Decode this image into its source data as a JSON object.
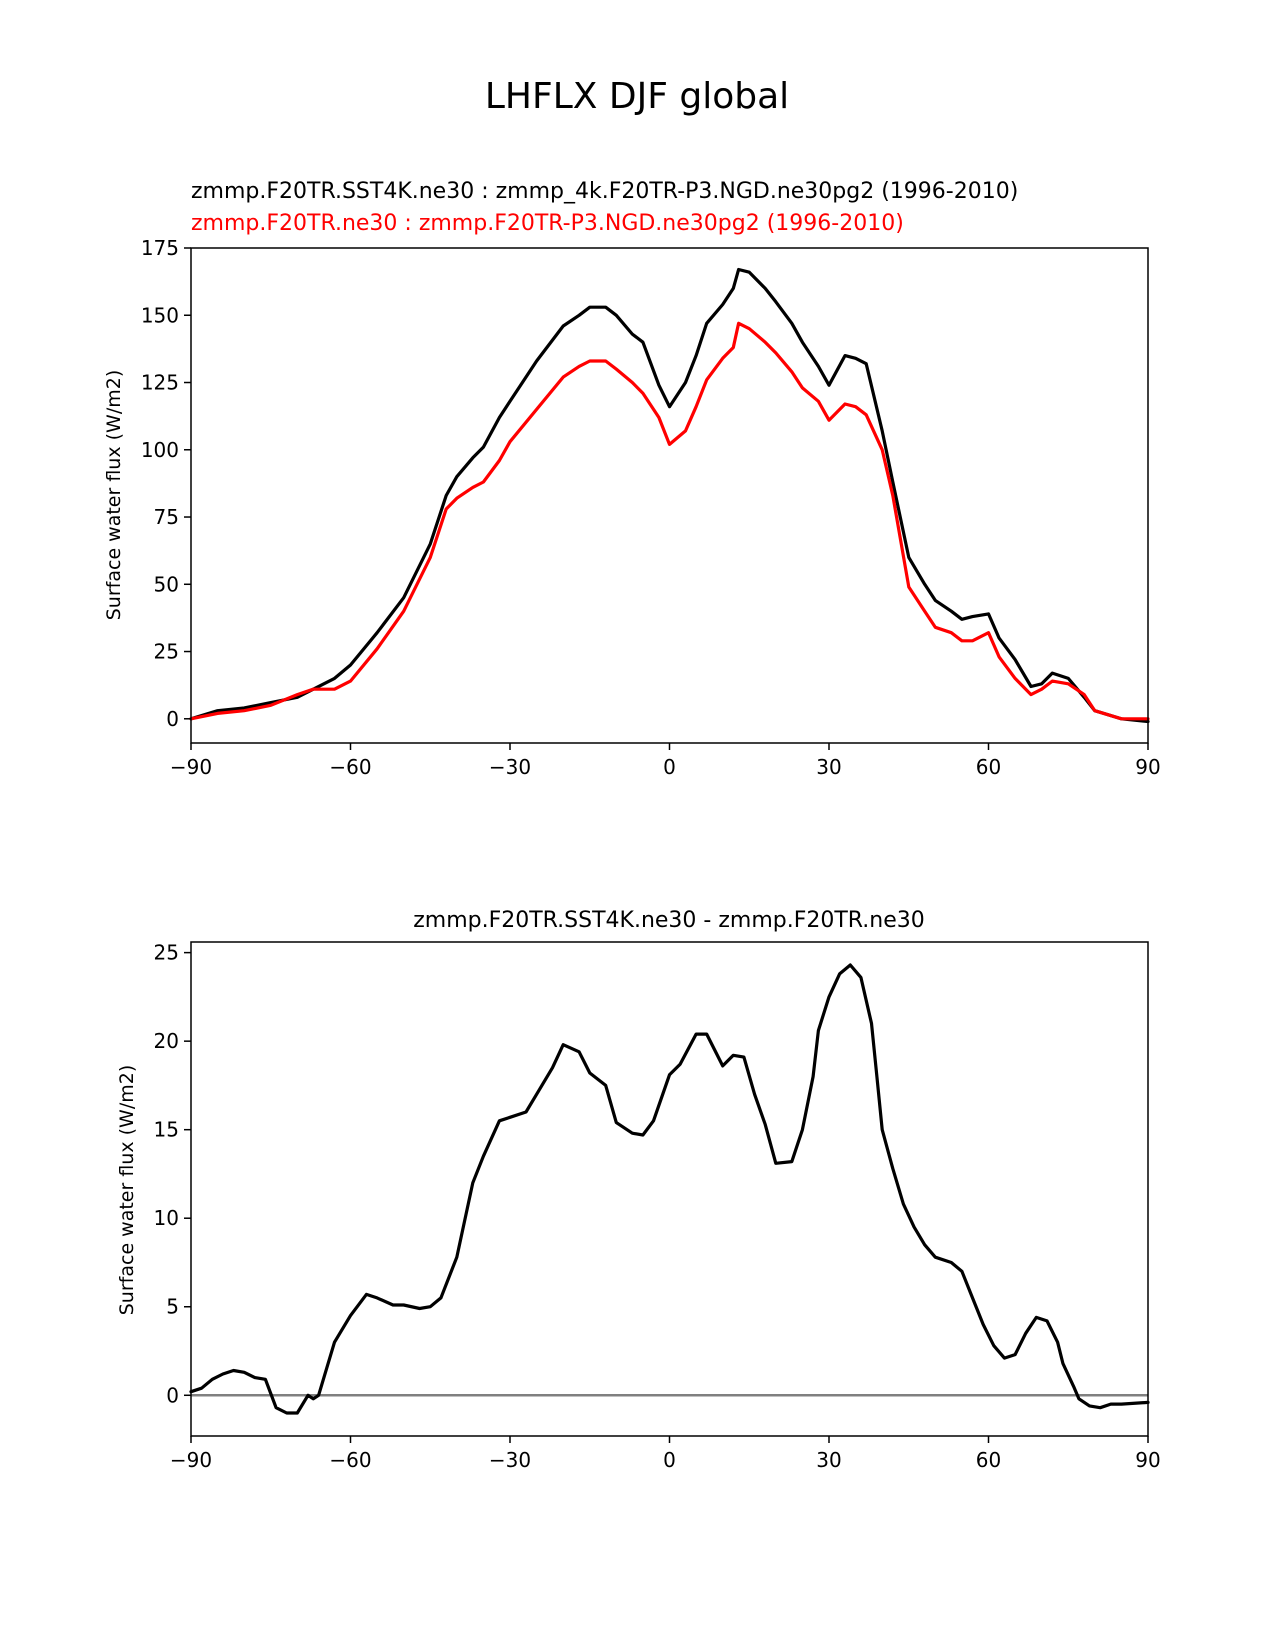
{
  "figure_title": "LHFLX DJF global",
  "chart_data": [
    {
      "type": "line",
      "title_lines": [
        {
          "text": "zmmp.F20TR.SST4K.ne30 : zmmp_4k.F20TR-P3.NGD.ne30pg2 (1996-2010)",
          "color": "#000000"
        },
        {
          "text": "zmmp.F20TR.ne30 : zmmp.F20TR-P3.NGD.ne30pg2 (1996-2010)",
          "color": "#ff0000"
        }
      ],
      "xlabel": "",
      "ylabel": "Surface water flux (W/m2)",
      "xlim": [
        -90,
        90
      ],
      "ylim": [
        -9,
        175
      ],
      "xticks": [
        -90,
        -60,
        -30,
        0,
        30,
        60,
        90
      ],
      "xtick_labels": [
        "−90",
        "−60",
        "−30",
        "0",
        "30",
        "60",
        "90"
      ],
      "yticks": [
        0,
        25,
        50,
        75,
        100,
        125,
        150,
        175
      ],
      "ytick_labels": [
        "0",
        "25",
        "50",
        "75",
        "100",
        "125",
        "150",
        "175"
      ],
      "x": [
        -90,
        -85,
        -80,
        -75,
        -70,
        -67,
        -63,
        -60,
        -55,
        -50,
        -45,
        -42,
        -40,
        -37,
        -35,
        -32,
        -30,
        -25,
        -20,
        -17,
        -15,
        -12,
        -10,
        -7,
        -5,
        -2,
        0,
        3,
        5,
        7,
        10,
        12,
        13,
        15,
        18,
        20,
        23,
        25,
        28,
        30,
        33,
        35,
        37,
        40,
        42,
        45,
        48,
        50,
        53,
        55,
        57,
        60,
        62,
        65,
        68,
        70,
        72,
        75,
        78,
        80,
        85,
        90
      ],
      "series": [
        {
          "name": "zmmp.F20TR.SST4K.ne30 : zmmp_4k.F20TR-P3.NGD.ne30pg2 (1996-2010)",
          "color": "#000000",
          "values": [
            0,
            3,
            4,
            6,
            8,
            11,
            15,
            20,
            32,
            45,
            65,
            83,
            90,
            97,
            101,
            112,
            118,
            133,
            146,
            150,
            153,
            153,
            150,
            143,
            140,
            124,
            116,
            125,
            135,
            147,
            154,
            160,
            167,
            166,
            160,
            155,
            147,
            140,
            131,
            124,
            135,
            134,
            132,
            107,
            88,
            60,
            50,
            44,
            40,
            37,
            38,
            39,
            30,
            22,
            12,
            13,
            17,
            15,
            8,
            3,
            0,
            -1
          ]
        },
        {
          "name": "zmmp.F20TR.ne30 : zmmp.F20TR-P3.NGD.ne30pg2 (1996-2010)",
          "color": "#ff0000",
          "values": [
            0,
            2,
            3,
            5,
            9,
            11,
            11,
            14,
            26,
            40,
            60,
            78,
            82,
            86,
            88,
            96,
            103,
            115,
            127,
            131,
            133,
            133,
            130,
            125,
            121,
            112,
            102,
            107,
            116,
            126,
            134,
            138,
            147,
            145,
            140,
            136,
            129,
            123,
            118,
            111,
            117,
            116,
            113,
            100,
            83,
            49,
            40,
            34,
            32,
            29,
            29,
            32,
            23,
            15,
            9,
            11,
            14,
            13,
            9,
            3,
            0,
            0
          ]
        }
      ]
    },
    {
      "type": "line",
      "title": "zmmp.F20TR.SST4K.ne30 - zmmp.F20TR.ne30",
      "xlabel": "",
      "ylabel": "Surface water flux (W/m2)",
      "xlim": [
        -90,
        90
      ],
      "ylim": [
        -2.3,
        25.6
      ],
      "xticks": [
        -90,
        -60,
        -30,
        0,
        30,
        60,
        90
      ],
      "xtick_labels": [
        "−90",
        "−60",
        "−30",
        "0",
        "30",
        "60",
        "90"
      ],
      "yticks": [
        0,
        5,
        10,
        15,
        20,
        25
      ],
      "ytick_labels": [
        "0",
        "5",
        "10",
        "15",
        "20",
        "25"
      ],
      "zero_line_color": "#808080",
      "x": [
        -90,
        -88,
        -86,
        -84,
        -82,
        -80,
        -78,
        -76,
        -74,
        -72,
        -70,
        -68,
        -67,
        -66,
        -65,
        -63,
        -60,
        -57,
        -55,
        -52,
        -50,
        -47,
        -45,
        -43,
        -40,
        -37,
        -35,
        -32,
        -30,
        -27,
        -25,
        -22,
        -20,
        -17,
        -15,
        -12,
        -10,
        -7,
        -5,
        -3,
        0,
        2,
        5,
        7,
        10,
        12,
        14,
        16,
        18,
        20,
        23,
        25,
        27,
        28,
        30,
        32,
        34,
        36,
        38,
        39,
        40,
        42,
        44,
        46,
        48,
        50,
        53,
        55,
        57,
        59,
        61,
        63,
        65,
        67,
        69,
        71,
        73,
        74,
        76,
        77,
        79,
        81,
        83,
        85,
        90
      ],
      "series": [
        {
          "name": "zmmp.F20TR.SST4K.ne30 - zmmp.F20TR.ne30",
          "color": "#000000",
          "values": [
            0.2,
            0.4,
            0.9,
            1.2,
            1.4,
            1.3,
            1.0,
            0.9,
            -0.7,
            -1.0,
            -1.0,
            0.0,
            -0.2,
            0.0,
            1.0,
            3.0,
            4.5,
            5.7,
            5.5,
            5.1,
            5.1,
            4.9,
            5.0,
            5.5,
            7.8,
            12.0,
            13.5,
            15.5,
            15.7,
            16.0,
            17.0,
            18.5,
            19.8,
            19.4,
            18.2,
            17.5,
            15.4,
            14.8,
            14.7,
            15.5,
            18.1,
            18.7,
            20.4,
            20.4,
            18.6,
            19.2,
            19.1,
            17.0,
            15.3,
            13.1,
            13.2,
            15.0,
            18.0,
            20.6,
            22.5,
            23.8,
            24.3,
            23.6,
            21.0,
            18.0,
            15.0,
            12.8,
            10.8,
            9.5,
            8.5,
            7.8,
            7.5,
            7.0,
            5.5,
            4.0,
            2.8,
            2.1,
            2.3,
            3.5,
            4.4,
            4.2,
            3.0,
            1.8,
            0.5,
            -0.2,
            -0.6,
            -0.7,
            -0.5,
            -0.5,
            -0.4
          ]
        }
      ]
    }
  ]
}
